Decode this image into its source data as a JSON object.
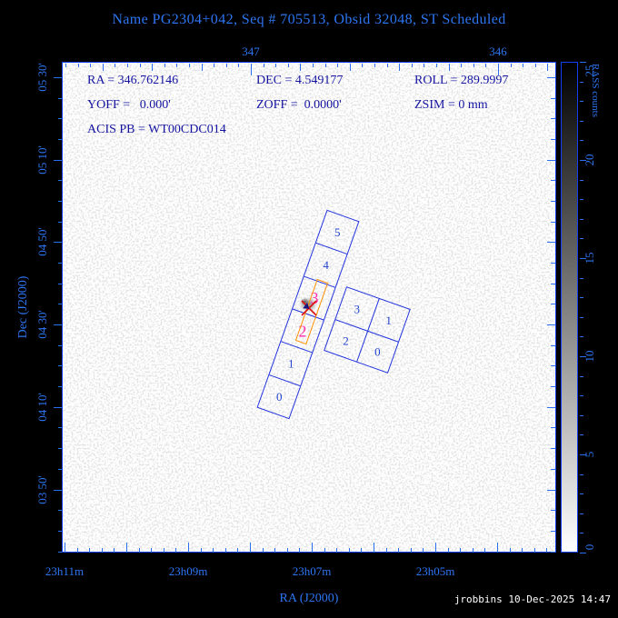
{
  "title": "Name PG2304+042, Seq # 705513, Obsid 32048, ST Scheduled",
  "params": {
    "ra": "RA = 346.762146",
    "dec": "DEC = 4.549177",
    "roll": "ROLL = 289.9997",
    "yoff": "YOFF =   0.000'",
    "zoff": "ZOFF =  0.0000'",
    "zsim": "ZSIM = 0 mm",
    "acis": "ACIS PB = WT00CDC014"
  },
  "axes": {
    "top": {
      "tick_labels": [
        "347",
        "346"
      ]
    },
    "bottom": {
      "label": "RA (J2000)",
      "tick_labels": [
        "23h11m",
        "23h09m",
        "23h07m",
        "23h05m"
      ]
    },
    "left": {
      "label": "Dec (J2000)",
      "tick_labels": [
        "05 30'",
        "05 10'",
        "04 50'",
        "04 30'",
        "04 10'",
        "03 50'"
      ]
    }
  },
  "colorbar": {
    "label": "RASS counts",
    "tick_labels": [
      "25",
      "20",
      "15",
      "10",
      "5",
      "0"
    ]
  },
  "chips": {
    "s_array": [
      "5",
      "4",
      "3",
      "2",
      "1",
      "0"
    ],
    "s_highlighted": [
      "3",
      "2"
    ],
    "i_array": [
      "3",
      "1",
      "2",
      "0"
    ]
  },
  "footer": "jrobbins 10-Dec-2025 14:47",
  "colors": {
    "frame_blue": "#1240ee",
    "label_blue": "#2d76f2",
    "param_navy": "#1414a0",
    "chip_blue": "#2233dd",
    "highlight_pink": "#ff2fa8",
    "subarray_orange": "#ff9000",
    "target_red": "#dd1111",
    "marker_navy": "#151580",
    "timestamp_white": "#ffffff"
  },
  "chart_data": {
    "type": "heatmap",
    "title": "Name PG2304+042, Seq # 705513, Obsid 32048, ST Scheduled",
    "xlabel": "RA (J2000)",
    "ylabel": "Dec (J2000)",
    "x_ticks_hms": [
      "23h11m",
      "23h09m",
      "23h07m",
      "23h05m"
    ],
    "x_ticks_deg": [
      347,
      346
    ],
    "y_ticks_dec": [
      "05 30'",
      "05 10'",
      "04 50'",
      "04 30'",
      "04 10'",
      "03 50'"
    ],
    "background_image": "RASS counts greyscale map, white=0 (low) to black=25 (high)",
    "colorbar": {
      "label": "RASS counts",
      "min": 0,
      "max": 25,
      "major_ticks": [
        0,
        5,
        10,
        15,
        20,
        25
      ]
    },
    "target": {
      "name": "PG2304+042",
      "ra_deg": 346.762146,
      "dec_deg": 4.549177,
      "roll_deg": 289.9997,
      "yoff_arcmin": 0.0,
      "zoff_arcmin": 0.0,
      "zsim_mm": 0,
      "acis_pb": "WT00CDC014",
      "marker": "red X with navy pointer on ACIS-S3 aimpoint"
    },
    "overlays": {
      "acis_s_strip_chips_top_to_bottom": [
        "5",
        "4",
        "3",
        "2",
        "1",
        "0"
      ],
      "acis_s_active_chips_pink": [
        "3",
        "2"
      ],
      "acis_i_quad_chips": [
        "3",
        "1",
        "2",
        "0"
      ],
      "subarray_window": "orange rectangle spanning center columns of S3 and S2",
      "focal_plane_rotation_deg": 19.5
    }
  }
}
